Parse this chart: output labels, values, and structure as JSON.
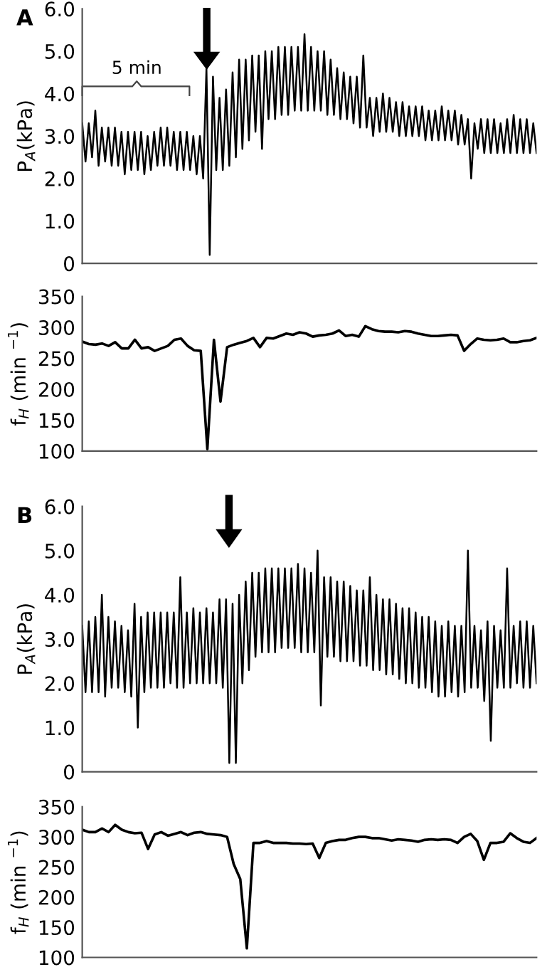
{
  "chart_data": [
    {
      "type": "line",
      "title": "A",
      "ylabel": "P$_{A}$(kPa)",
      "color": "#000000",
      "annotations": [
        "5 min"
      ],
      "ylim": [
        0,
        6
      ],
      "yticks": [
        0,
        {
          "value": 1,
          "label": "1.0"
        },
        {
          "value": 2,
          "label": "2.0"
        },
        {
          "value": 3,
          "label": "3.0"
        },
        {
          "value": 4,
          "label": "4.0"
        },
        {
          "value": 5,
          "label": "5.0"
        },
        {
          "value": 6,
          "label": "6.0"
        }
      ],
      "grid": false,
      "legend": false,
      "categories": [
        null,
        null,
        null,
        null,
        null,
        null,
        null,
        null,
        null,
        null,
        null,
        null,
        null,
        null,
        null,
        null,
        null,
        null,
        null,
        null,
        null,
        null,
        null,
        null,
        null,
        null,
        null,
        null,
        null,
        null,
        null,
        null,
        null,
        null,
        null,
        null,
        null,
        null,
        null,
        null,
        null,
        null,
        null,
        null,
        null,
        null,
        null,
        null,
        null,
        null,
        null,
        null,
        null,
        null,
        null,
        null,
        null,
        null,
        null,
        null,
        null,
        null,
        null,
        null,
        null,
        null,
        null,
        null,
        null,
        null,
        null,
        null,
        null,
        null,
        null,
        null,
        null,
        null,
        null,
        null,
        null,
        null,
        null,
        null,
        null,
        null,
        null,
        null,
        null,
        null,
        null,
        null,
        null,
        null,
        null,
        null,
        null,
        null,
        null,
        null,
        null,
        null,
        null,
        null,
        null,
        null,
        null,
        null,
        null,
        null,
        null,
        null,
        null,
        null,
        null,
        null,
        null,
        null,
        null,
        null,
        null,
        null,
        null,
        null,
        null,
        null,
        null,
        null,
        null,
        null,
        null,
        null,
        null,
        null,
        null,
        null,
        null,
        null,
        null,
        null
      ],
      "values": [
        3.3,
        2.4,
        3.3,
        2.5,
        3.6,
        2.3,
        3.2,
        2.4,
        3.2,
        2.3,
        3.2,
        2.3,
        3.1,
        2.1,
        3.1,
        2.2,
        3.1,
        2.2,
        3.1,
        2.1,
        3.0,
        2.2,
        3.1,
        2.3,
        3.2,
        2.3,
        3.2,
        2.3,
        3.1,
        2.2,
        3.1,
        2.2,
        3.1,
        2.2,
        3.0,
        2.1,
        3.0,
        2.0,
        4.6,
        0.2,
        4.4,
        2.2,
        3.9,
        2.2,
        4.1,
        2.3,
        4.5,
        2.5,
        4.8,
        2.7,
        4.8,
        2.9,
        4.9,
        3.1,
        4.9,
        2.7,
        5.0,
        3.4,
        5.0,
        3.4,
        5.1,
        3.5,
        5.1,
        3.5,
        5.1,
        3.6,
        5.1,
        3.6,
        5.4,
        3.6,
        5.1,
        3.6,
        5.0,
        3.6,
        5.0,
        3.5,
        4.8,
        3.5,
        4.6,
        3.4,
        4.5,
        3.4,
        4.4,
        3.3,
        4.4,
        3.2,
        4.9,
        3.2,
        3.9,
        3.0,
        3.9,
        3.1,
        4.0,
        3.1,
        3.9,
        3.1,
        3.8,
        3.0,
        3.8,
        3.0,
        3.7,
        3.0,
        3.7,
        3.0,
        3.7,
        2.9,
        3.6,
        2.9,
        3.6,
        2.9,
        3.7,
        2.9,
        3.6,
        2.9,
        3.6,
        2.8,
        3.5,
        2.8,
        3.4,
        2.0,
        3.3,
        2.7,
        3.4,
        2.6,
        3.4,
        2.6,
        3.4,
        2.6,
        3.3,
        2.6,
        3.4,
        2.6,
        3.5,
        2.6,
        3.4,
        2.6,
        3.4,
        2.6,
        3.3,
        2.6
      ]
    },
    {
      "type": "line",
      "ylabel": "f$_{H}$ (min $^{−1}$)",
      "color": "#000000",
      "ylim": [
        100,
        350
      ],
      "yticks": [
        100,
        150,
        200,
        250,
        300,
        350
      ],
      "grid": false,
      "legend": false,
      "categories": [
        null,
        null,
        null,
        null,
        null,
        null,
        null,
        null,
        null,
        null,
        null,
        null,
        null,
        null,
        null,
        null,
        null,
        null,
        null,
        null,
        null,
        null,
        null,
        null,
        null,
        null,
        null,
        null,
        null,
        null,
        null,
        null,
        null,
        null,
        null,
        null,
        null,
        null,
        null,
        null,
        null,
        null,
        null,
        null,
        null,
        null,
        null,
        null,
        null,
        null,
        null,
        null,
        null,
        null,
        null,
        null,
        null,
        null,
        null,
        null,
        null,
        null,
        null,
        null,
        null,
        null,
        null,
        null,
        null,
        null
      ],
      "values": [
        277,
        273,
        272,
        274,
        270,
        276,
        266,
        266,
        280,
        266,
        268,
        262,
        266,
        270,
        280,
        282,
        270,
        263,
        262,
        103,
        280,
        180,
        268,
        272,
        275,
        278,
        283,
        268,
        283,
        282,
        286,
        290,
        288,
        292,
        290,
        285,
        287,
        288,
        290,
        295,
        286,
        288,
        285,
        302,
        297,
        294,
        293,
        293,
        292,
        294,
        293,
        290,
        288,
        286,
        286,
        287,
        288,
        287,
        262,
        273,
        282,
        280,
        279,
        280,
        282,
        276,
        276,
        278,
        279,
        283
      ]
    },
    {
      "type": "line",
      "title": "B",
      "ylabel": "P$_{A}$(kPa)",
      "color": "#000000",
      "ylim": [
        0,
        6
      ],
      "yticks": [
        0,
        {
          "value": 1,
          "label": "1.0"
        },
        {
          "value": 2,
          "label": "2.0"
        },
        {
          "value": 3,
          "label": "3.0"
        },
        {
          "value": 4,
          "label": "4.0"
        },
        {
          "value": 5,
          "label": "5.0"
        },
        {
          "value": 6,
          "label": "6.0"
        }
      ],
      "grid": false,
      "legend": false,
      "categories": [
        null,
        null,
        null,
        null,
        null,
        null,
        null,
        null,
        null,
        null,
        null,
        null,
        null,
        null,
        null,
        null,
        null,
        null,
        null,
        null,
        null,
        null,
        null,
        null,
        null,
        null,
        null,
        null,
        null,
        null,
        null,
        null,
        null,
        null,
        null,
        null,
        null,
        null,
        null,
        null,
        null,
        null,
        null,
        null,
        null,
        null,
        null,
        null,
        null,
        null,
        null,
        null,
        null,
        null,
        null,
        null,
        null,
        null,
        null,
        null,
        null,
        null,
        null,
        null,
        null,
        null,
        null,
        null,
        null,
        null,
        null,
        null,
        null,
        null,
        null,
        null,
        null,
        null,
        null,
        null,
        null,
        null,
        null,
        null,
        null,
        null,
        null,
        null,
        null,
        null,
        null,
        null,
        null,
        null,
        null,
        null,
        null,
        null,
        null,
        null,
        null,
        null,
        null,
        null,
        null,
        null,
        null,
        null,
        null,
        null,
        null,
        null,
        null,
        null,
        null,
        null,
        null,
        null,
        null,
        null,
        null,
        null,
        null,
        null,
        null,
        null,
        null,
        null,
        null,
        null,
        null,
        null,
        null,
        null,
        null,
        null,
        null,
        null,
        null,
        null
      ],
      "values": [
        3.3,
        1.8,
        3.4,
        1.8,
        3.5,
        1.8,
        4.0,
        1.7,
        3.5,
        1.9,
        3.4,
        1.9,
        3.3,
        1.8,
        3.2,
        1.7,
        3.8,
        1.0,
        3.5,
        1.8,
        3.6,
        1.9,
        3.6,
        1.9,
        3.6,
        1.9,
        3.6,
        2.0,
        3.6,
        1.9,
        4.4,
        1.9,
        3.6,
        2.0,
        3.7,
        2.0,
        3.6,
        2.0,
        3.7,
        2.0,
        3.6,
        2.0,
        3.9,
        1.9,
        3.9,
        0.2,
        3.8,
        0.2,
        4.0,
        2.0,
        4.3,
        2.3,
        4.5,
        2.6,
        4.5,
        2.7,
        4.6,
        2.7,
        4.6,
        2.7,
        4.6,
        2.8,
        4.6,
        2.8,
        4.6,
        2.8,
        4.7,
        2.7,
        4.6,
        2.7,
        4.5,
        2.7,
        5.0,
        1.5,
        4.4,
        2.6,
        4.4,
        2.6,
        4.3,
        2.5,
        4.3,
        2.5,
        4.2,
        2.5,
        4.1,
        2.4,
        4.1,
        2.4,
        4.4,
        2.3,
        4.0,
        2.3,
        3.9,
        2.2,
        3.9,
        2.2,
        3.8,
        2.1,
        3.7,
        2.0,
        3.7,
        2.0,
        3.6,
        1.9,
        3.5,
        1.9,
        3.5,
        1.8,
        3.4,
        1.7,
        3.3,
        1.7,
        3.4,
        1.8,
        3.3,
        1.7,
        3.3,
        1.8,
        5.0,
        1.9,
        3.3,
        1.9,
        3.2,
        1.6,
        3.4,
        0.7,
        3.3,
        1.9,
        3.2,
        1.9,
        4.6,
        1.9,
        3.3,
        2.0,
        3.4,
        1.9,
        3.4,
        1.9,
        3.3,
        2.0
      ]
    },
    {
      "type": "line",
      "ylabel": "f$_{H}$ (min $^{−1}$)",
      "color": "#000000",
      "ylim": [
        100,
        350
      ],
      "yticks": [
        100,
        150,
        200,
        250,
        300,
        350
      ],
      "grid": false,
      "legend": false,
      "categories": [
        null,
        null,
        null,
        null,
        null,
        null,
        null,
        null,
        null,
        null,
        null,
        null,
        null,
        null,
        null,
        null,
        null,
        null,
        null,
        null,
        null,
        null,
        null,
        null,
        null,
        null,
        null,
        null,
        null,
        null,
        null,
        null,
        null,
        null,
        null,
        null,
        null,
        null,
        null,
        null,
        null,
        null,
        null,
        null,
        null,
        null,
        null,
        null,
        null,
        null,
        null,
        null,
        null,
        null,
        null,
        null,
        null,
        null,
        null,
        null,
        null,
        null,
        null,
        null,
        null,
        null,
        null,
        null,
        null,
        null
      ],
      "values": [
        312,
        308,
        308,
        314,
        308,
        320,
        312,
        308,
        306,
        307,
        280,
        304,
        308,
        302,
        305,
        308,
        303,
        307,
        308,
        305,
        304,
        303,
        300,
        255,
        230,
        115,
        290,
        290,
        293,
        290,
        290,
        290,
        289,
        289,
        288,
        289,
        265,
        290,
        293,
        295,
        295,
        298,
        300,
        300,
        298,
        298,
        296,
        294,
        296,
        295,
        294,
        292,
        295,
        296,
        295,
        296,
        295,
        290,
        300,
        305,
        293,
        262,
        290,
        290,
        292,
        306,
        298,
        292,
        290,
        298
      ]
    }
  ]
}
